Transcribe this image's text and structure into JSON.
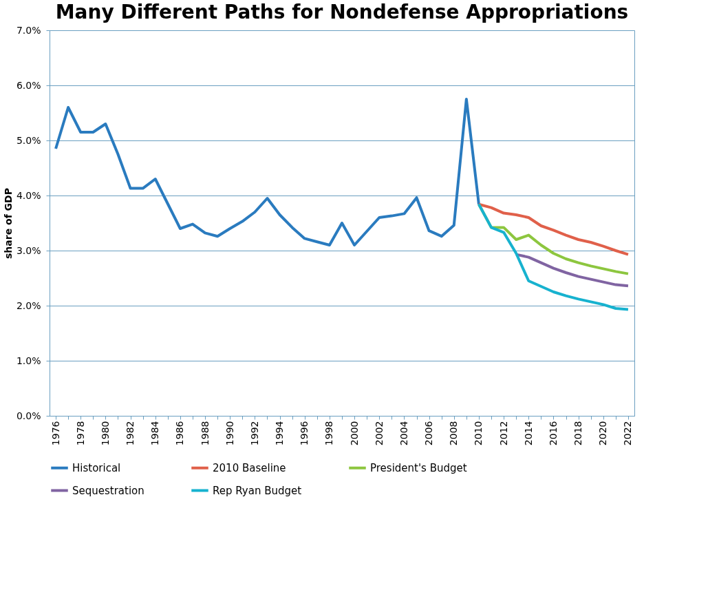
{
  "chart_data": {
    "type": "line",
    "title": "Many Different Paths for Nondefense Appropriations",
    "ylabel": "share of GDP",
    "categories": [
      "1976",
      null,
      "1978",
      null,
      "1980",
      null,
      "1982",
      null,
      "1984",
      null,
      "1986",
      null,
      "1988",
      null,
      "1990",
      null,
      "1992",
      null,
      "1994",
      null,
      "1996",
      null,
      "1998",
      null,
      "2000",
      null,
      "2002",
      null,
      "2004",
      null,
      "2006",
      null,
      "2008",
      null,
      "2010",
      null,
      "2012",
      null,
      "2014",
      null,
      "2016",
      null,
      "2018",
      null,
      "2020",
      null,
      "2022"
    ],
    "ylim": [
      0,
      7
    ],
    "yticks": [
      {
        "value": 0,
        "label": "0.0%"
      },
      {
        "value": 1,
        "label": "1.0%"
      },
      {
        "value": 2,
        "label": "2.0%"
      },
      {
        "value": 3,
        "label": "3.0%"
      },
      {
        "value": 4,
        "label": "4.0%"
      },
      {
        "value": 5,
        "label": "5.0%"
      },
      {
        "value": 6,
        "label": "6.0%"
      },
      {
        "value": 7,
        "label": "7.0%"
      }
    ],
    "grid": "y",
    "legend": "bottom",
    "marker": "none",
    "line_style": "solid",
    "series": [
      {
        "name": "Historical",
        "color": "#2a7bbf",
        "values": [
          4.85,
          5.6,
          5.15,
          5.15,
          5.3,
          4.75,
          4.13,
          4.13,
          4.3,
          3.85,
          3.4,
          3.48,
          3.32,
          3.26,
          3.4,
          3.53,
          3.7,
          3.95,
          3.65,
          3.42,
          3.22,
          3.16,
          3.1,
          3.5,
          3.1,
          3.35,
          3.6,
          3.63,
          3.67,
          3.96,
          3.36,
          3.26,
          3.46,
          5.75,
          3.84,
          null,
          null,
          null,
          null,
          null,
          null,
          null,
          null,
          null,
          null,
          null,
          null
        ]
      },
      {
        "name": "2010 Baseline",
        "color": "#e0604a",
        "values": [
          null,
          null,
          null,
          null,
          null,
          null,
          null,
          null,
          null,
          null,
          null,
          null,
          null,
          null,
          null,
          null,
          null,
          null,
          null,
          null,
          null,
          null,
          null,
          null,
          null,
          null,
          null,
          null,
          null,
          null,
          null,
          null,
          null,
          null,
          3.84,
          3.78,
          3.68,
          3.65,
          3.6,
          3.45,
          3.37,
          3.28,
          3.2,
          3.15,
          3.08,
          3.0,
          2.93
        ]
      },
      {
        "name": "President's Budget",
        "color": "#8dc63f",
        "values": [
          null,
          null,
          null,
          null,
          null,
          null,
          null,
          null,
          null,
          null,
          null,
          null,
          null,
          null,
          null,
          null,
          null,
          null,
          null,
          null,
          null,
          null,
          null,
          null,
          null,
          null,
          null,
          null,
          null,
          null,
          null,
          null,
          null,
          null,
          3.84,
          3.42,
          3.42,
          3.2,
          3.28,
          3.1,
          2.95,
          2.85,
          2.78,
          2.72,
          2.67,
          2.62,
          2.58
        ]
      },
      {
        "name": "Sequestration",
        "color": "#8064a2",
        "values": [
          null,
          null,
          null,
          null,
          null,
          null,
          null,
          null,
          null,
          null,
          null,
          null,
          null,
          null,
          null,
          null,
          null,
          null,
          null,
          null,
          null,
          null,
          null,
          null,
          null,
          null,
          null,
          null,
          null,
          null,
          null,
          null,
          null,
          null,
          null,
          null,
          null,
          2.93,
          2.88,
          2.78,
          2.68,
          2.6,
          2.53,
          2.48,
          2.43,
          2.38,
          2.36
        ]
      },
      {
        "name": "Rep Ryan Budget",
        "color": "#17b2cf",
        "values": [
          null,
          null,
          null,
          null,
          null,
          null,
          null,
          null,
          null,
          null,
          null,
          null,
          null,
          null,
          null,
          null,
          null,
          null,
          null,
          null,
          null,
          null,
          null,
          null,
          null,
          null,
          null,
          null,
          null,
          null,
          null,
          null,
          null,
          null,
          3.84,
          3.42,
          3.33,
          2.95,
          2.45,
          2.35,
          2.25,
          2.18,
          2.12,
          2.07,
          2.02,
          1.95,
          1.93
        ]
      }
    ]
  }
}
